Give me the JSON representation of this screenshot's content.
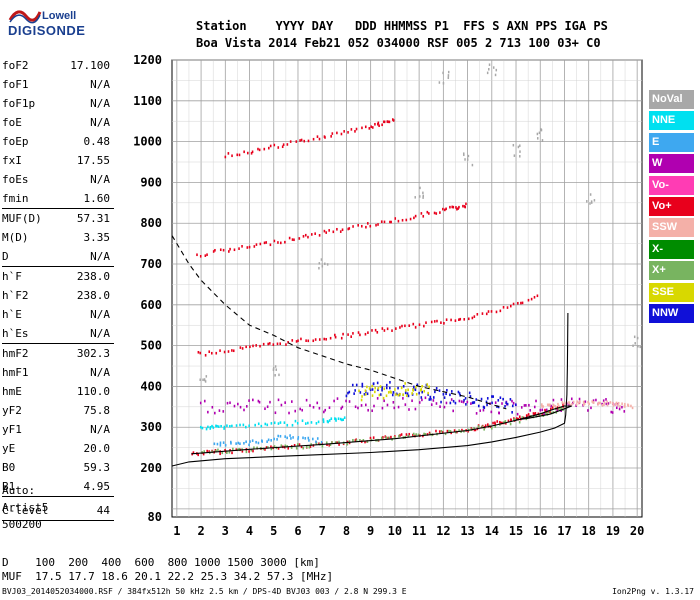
{
  "logo": {
    "line1": "Lowell",
    "line2": "DIGISONDE"
  },
  "header": {
    "line1": "Station    YYYY DAY   DDD HHMMSS P1  FFS S AXN PPS IGA PS",
    "line2": "Boa Vista 2014 Feb21 052 034000 RSF 005 2 713 100 03+ C0"
  },
  "params": [
    {
      "k": "foF2",
      "v": "17.100"
    },
    {
      "k": "foF1",
      "v": "N/A"
    },
    {
      "k": "foF1p",
      "v": "N/A"
    },
    {
      "k": "foE",
      "v": "N/A"
    },
    {
      "k": "foEp",
      "v": "0.48"
    },
    {
      "k": "fxI",
      "v": "17.55"
    },
    {
      "k": "foEs",
      "v": "N/A"
    },
    {
      "k": "fmin",
      "v": "1.60"
    },
    {
      "k": "MUF(D)",
      "v": "57.31"
    },
    {
      "k": "M(D)",
      "v": "3.35"
    },
    {
      "k": "D",
      "v": "N/A"
    },
    {
      "k": "h`F",
      "v": "238.0"
    },
    {
      "k": "h`F2",
      "v": "238.0"
    },
    {
      "k": "h`E",
      "v": "N/A"
    },
    {
      "k": "h`Es",
      "v": "N/A"
    },
    {
      "k": "hmF2",
      "v": "302.3"
    },
    {
      "k": "hmF1",
      "v": "N/A"
    },
    {
      "k": "hmE",
      "v": "110.0"
    },
    {
      "k": "yF2",
      "v": "75.8"
    },
    {
      "k": "yF1",
      "v": "N/A"
    },
    {
      "k": "yE",
      "v": "20.0"
    },
    {
      "k": "B0",
      "v": "59.3"
    },
    {
      "k": "B1",
      "v": "4.95"
    },
    {
      "k": "C-level",
      "v": "44"
    }
  ],
  "auto": {
    "l1": "Auto:",
    "l2": "Artist5",
    "l3": "500200"
  },
  "legend": [
    {
      "name": "NoVal",
      "color": "#a8a8a8"
    },
    {
      "name": "NNE",
      "color": "#00e0f0"
    },
    {
      "name": "E",
      "color": "#3ea8f0"
    },
    {
      "name": "W",
      "color": "#b000b0"
    },
    {
      "name": "Vo-",
      "color": "#ff3cb4"
    },
    {
      "name": "Vo+",
      "color": "#e8001c"
    },
    {
      "name": "SSW",
      "color": "#f4b0a8"
    },
    {
      "name": "X-",
      "color": "#008c00"
    },
    {
      "name": "X+",
      "color": "#78b460"
    },
    {
      "name": "SSE",
      "color": "#d8d800"
    },
    {
      "name": "NNW",
      "color": "#1010d8"
    }
  ],
  "muf": {
    "d_line": "D    100  200  400  600  800 1000 1500 3000 [km]",
    "muf_line": "MUF  17.5 17.7 18.6 20.1 22.2 25.3 34.2 57.3 [MHz]"
  },
  "footer": {
    "left": "BVJ03_2014052034000.RSF / 384fx512h 50 kHz 2.5 km / DPS-4D BVJ03 003 / 2.8 N 299.3 E",
    "right": "Ion2Png v. 1.3.17"
  },
  "chart_data": {
    "type": "scatter",
    "x_ticks": [
      1,
      2,
      3,
      4,
      5,
      6,
      7,
      8,
      9,
      10,
      11,
      12,
      13,
      14,
      15,
      16,
      17,
      18,
      19,
      20
    ],
    "y_ticks": [
      80,
      200,
      300,
      400,
      500,
      600,
      700,
      800,
      900,
      1000,
      1100,
      1200
    ],
    "xlim": [
      0.8,
      20.2
    ],
    "ylim": [
      80,
      1200
    ],
    "grid": true,
    "legend_placement": "right",
    "series": [
      {
        "name": "Vo+",
        "color": "#e8001c",
        "points": [
          [
            1.6,
            238
          ],
          [
            3,
            244
          ],
          [
            5,
            252
          ],
          [
            7,
            262
          ],
          [
            9,
            272
          ],
          [
            11,
            285
          ],
          [
            13,
            298
          ],
          [
            14,
            310
          ],
          [
            15,
            322
          ],
          [
            16,
            338
          ],
          [
            17,
            358
          ]
        ]
      },
      {
        "name": "X+",
        "color": "#78b460",
        "points": [
          [
            2,
            242
          ],
          [
            4,
            248
          ],
          [
            6,
            256
          ],
          [
            8,
            266
          ],
          [
            10,
            278
          ],
          [
            12,
            290
          ],
          [
            14,
            305
          ],
          [
            16,
            332
          ],
          [
            17,
            352
          ]
        ]
      },
      {
        "name": "Vo+ 2nd",
        "color": "#e8001c",
        "points": [
          [
            1.8,
            482
          ],
          [
            4,
            498
          ],
          [
            6,
            515
          ],
          [
            8,
            528
          ],
          [
            10,
            545
          ],
          [
            12,
            562
          ],
          [
            14,
            585
          ],
          [
            16,
            625
          ]
        ]
      },
      {
        "name": "Vo+ 3rd",
        "color": "#e8001c",
        "points": [
          [
            1.8,
            725
          ],
          [
            4,
            745
          ],
          [
            6,
            768
          ],
          [
            8,
            790
          ],
          [
            10,
            810
          ],
          [
            12,
            835
          ],
          [
            13,
            848
          ]
        ]
      },
      {
        "name": "Vo+ 4th",
        "color": "#e8001c",
        "points": [
          [
            3,
            968
          ],
          [
            5,
            990
          ],
          [
            7,
            1015
          ],
          [
            9,
            1040
          ],
          [
            10,
            1055
          ]
        ]
      },
      {
        "name": "W",
        "color": "#b000b0",
        "points": [
          [
            2,
            352
          ],
          [
            4,
            355
          ],
          [
            6,
            352
          ],
          [
            8,
            358
          ],
          [
            10,
            362
          ],
          [
            12,
            358
          ],
          [
            14,
            350
          ],
          [
            15.5,
            350
          ],
          [
            17,
            355
          ],
          [
            18.5,
            360
          ],
          [
            19.5,
            352
          ]
        ]
      },
      {
        "name": "NNE",
        "color": "#00e0f0",
        "points": [
          [
            2,
            300
          ],
          [
            3,
            305
          ],
          [
            5,
            310
          ],
          [
            7,
            318
          ],
          [
            8,
            322
          ]
        ]
      },
      {
        "name": "E",
        "color": "#3ea8f0",
        "points": [
          [
            2.5,
            260
          ],
          [
            4,
            265
          ],
          [
            5.5,
            280
          ],
          [
            7,
            270
          ]
        ]
      },
      {
        "name": "NNW",
        "color": "#1010d8",
        "points": [
          [
            8,
            390
          ],
          [
            9,
            395
          ],
          [
            10,
            398
          ],
          [
            11,
            392
          ],
          [
            12,
            380
          ],
          [
            13,
            372
          ],
          [
            14,
            362
          ],
          [
            15,
            355
          ]
        ]
      },
      {
        "name": "SSE",
        "color": "#d8d800",
        "points": [
          [
            8.5,
            385
          ],
          [
            9.5,
            390
          ],
          [
            10.5,
            395
          ],
          [
            11.5,
            390
          ]
        ]
      },
      {
        "name": "SSW",
        "color": "#f4b0a8",
        "points": [
          [
            16,
            355
          ],
          [
            17,
            360
          ],
          [
            18,
            362
          ],
          [
            19,
            360
          ],
          [
            19.8,
            355
          ]
        ]
      },
      {
        "name": "NoVal",
        "color": "#a8a8a8",
        "points": [
          [
            2,
            420
          ],
          [
            5,
            440
          ],
          [
            7,
            700
          ],
          [
            11,
            880
          ],
          [
            13,
            960
          ],
          [
            15,
            980
          ],
          [
            12,
            1160
          ],
          [
            14,
            1180
          ],
          [
            16,
            1020
          ],
          [
            18,
            860
          ],
          [
            20,
            510
          ]
        ]
      }
    ],
    "curves": [
      {
        "name": "profile",
        "color": "#000000",
        "points": [
          [
            0.8,
            205
          ],
          [
            1.5,
            215
          ],
          [
            3,
            223
          ],
          [
            5,
            228
          ],
          [
            7,
            233
          ],
          [
            9,
            238
          ],
          [
            11,
            245
          ],
          [
            13,
            255
          ],
          [
            14,
            264
          ],
          [
            15,
            275
          ],
          [
            16,
            288
          ],
          [
            16.6,
            298
          ],
          [
            17.0,
            310
          ],
          [
            17.05,
            330
          ],
          [
            17.1,
            380
          ],
          [
            17.12,
            450
          ],
          [
            17.14,
            580
          ]
        ]
      },
      {
        "name": "trace-fit",
        "color": "#000000",
        "points": [
          [
            1.6,
            235
          ],
          [
            4,
            246
          ],
          [
            7,
            258
          ],
          [
            10,
            272
          ],
          [
            13,
            292
          ],
          [
            14,
            303
          ],
          [
            15,
            317
          ],
          [
            16,
            333
          ],
          [
            16.6,
            345
          ],
          [
            17.0,
            352
          ],
          [
            17.3,
            352
          ],
          [
            16.9,
            343
          ],
          [
            16.4,
            332
          ],
          [
            15.5,
            322
          ],
          [
            15,
            318
          ]
        ]
      },
      {
        "name": "dashed-mufd",
        "color": "#000000",
        "dashed": true,
        "points": [
          [
            0.8,
            770
          ],
          [
            1.5,
            700
          ],
          [
            2,
            660
          ],
          [
            3,
            600
          ],
          [
            4,
            550
          ],
          [
            5,
            525
          ],
          [
            6,
            495
          ],
          [
            7,
            475
          ],
          [
            8,
            455
          ],
          [
            9,
            440
          ],
          [
            10,
            420
          ],
          [
            11,
            400
          ],
          [
            12,
            387
          ],
          [
            13,
            374
          ],
          [
            14,
            356
          ],
          [
            14.6,
            345
          ]
        ]
      }
    ]
  }
}
